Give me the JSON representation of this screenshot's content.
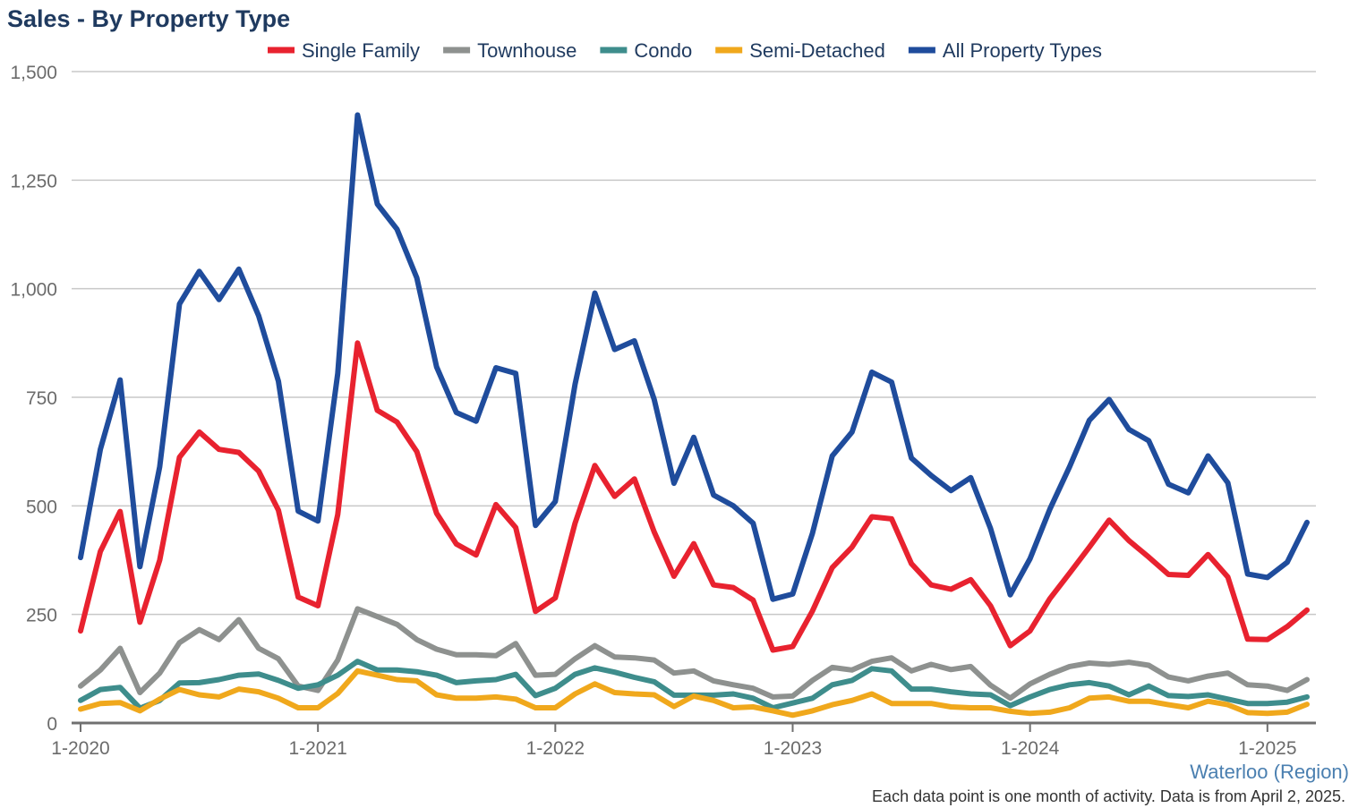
{
  "chart_data": {
    "type": "line",
    "title": "Sales - By Property Type",
    "xlabel": "",
    "ylabel": "",
    "ylim": [
      0,
      1500
    ],
    "y_ticks": [
      0,
      250,
      500,
      750,
      1000,
      1250,
      1500
    ],
    "y_tick_labels": [
      "0",
      "250",
      "500",
      "750",
      "1,000",
      "1,250",
      "1,500"
    ],
    "x_tick_labels": [
      "1-2020",
      "1-2021",
      "1-2022",
      "1-2023",
      "1-2024",
      "1-2025"
    ],
    "x_tick_index": [
      0,
      12,
      24,
      36,
      48,
      60
    ],
    "x_start": "2020-01",
    "x_end": "2025-03",
    "grid": true,
    "legend_position": "top",
    "series": [
      {
        "name": "Single Family",
        "color": "#e8222f",
        "values": [
          212,
          395,
          487,
          232,
          375,
          612,
          670,
          630,
          623,
          580,
          490,
          290,
          270,
          480,
          875,
          720,
          693,
          625,
          483,
          412,
          387,
          503,
          450,
          257,
          288,
          460,
          593,
          522,
          562,
          440,
          338,
          413,
          318,
          312,
          283,
          168,
          176,
          258,
          358,
          405,
          475,
          470,
          367,
          318,
          308,
          330,
          270,
          178,
          212,
          286,
          345,
          405,
          467,
          420,
          382,
          342,
          340,
          388,
          336,
          193,
          192,
          222,
          260
        ]
      },
      {
        "name": "Townhouse",
        "color": "#8e918f",
        "values": [
          85,
          122,
          172,
          70,
          115,
          185,
          215,
          192,
          238,
          172,
          148,
          85,
          75,
          145,
          263,
          245,
          227,
          192,
          170,
          157,
          157,
          155,
          183,
          110,
          112,
          148,
          178,
          152,
          150,
          145,
          115,
          120,
          97,
          88,
          80,
          60,
          62,
          98,
          128,
          122,
          142,
          150,
          120,
          135,
          123,
          130,
          87,
          57,
          90,
          112,
          130,
          138,
          135,
          140,
          133,
          106,
          97,
          108,
          115,
          88,
          85,
          75,
          100
        ]
      },
      {
        "name": "Condo",
        "color": "#3e8d8c",
        "values": [
          52,
          77,
          82,
          34,
          52,
          92,
          93,
          100,
          110,
          113,
          98,
          80,
          88,
          110,
          142,
          122,
          122,
          118,
          110,
          93,
          97,
          100,
          112,
          63,
          80,
          112,
          127,
          117,
          105,
          95,
          64,
          64,
          64,
          67,
          57,
          35,
          46,
          57,
          88,
          98,
          125,
          120,
          78,
          78,
          72,
          67,
          65,
          40,
          60,
          77,
          88,
          93,
          85,
          65,
          85,
          63,
          61,
          65,
          55,
          45,
          45,
          48,
          60
        ]
      },
      {
        "name": "Semi-Detached",
        "color": "#f0a81c",
        "values": [
          32,
          45,
          47,
          28,
          55,
          77,
          65,
          60,
          78,
          72,
          57,
          35,
          35,
          68,
          120,
          110,
          100,
          97,
          65,
          57,
          57,
          60,
          55,
          35,
          35,
          67,
          90,
          70,
          67,
          65,
          38,
          62,
          52,
          35,
          37,
          28,
          18,
          28,
          42,
          52,
          67,
          45,
          45,
          45,
          37,
          35,
          35,
          27,
          22,
          25,
          35,
          57,
          60,
          50,
          50,
          42,
          35,
          50,
          42,
          24,
          22,
          25,
          43
        ]
      },
      {
        "name": "All Property Types",
        "color": "#1f4c9c",
        "values": [
          381,
          630,
          790,
          360,
          590,
          965,
          1040,
          975,
          1045,
          938,
          787,
          488,
          465,
          805,
          1400,
          1195,
          1137,
          1025,
          820,
          715,
          695,
          818,
          805,
          455,
          510,
          780,
          990,
          860,
          880,
          745,
          552,
          658,
          525,
          500,
          460,
          285,
          297,
          437,
          615,
          670,
          808,
          785,
          610,
          570,
          535,
          565,
          448,
          295,
          378,
          492,
          590,
          697,
          745,
          676,
          650,
          550,
          530,
          615,
          553,
          343,
          335,
          370,
          462
        ]
      }
    ],
    "footer_region": "Waterloo (Region)",
    "footer_note": "Each data point is one month of activity. Data is from April 2, 2025."
  }
}
